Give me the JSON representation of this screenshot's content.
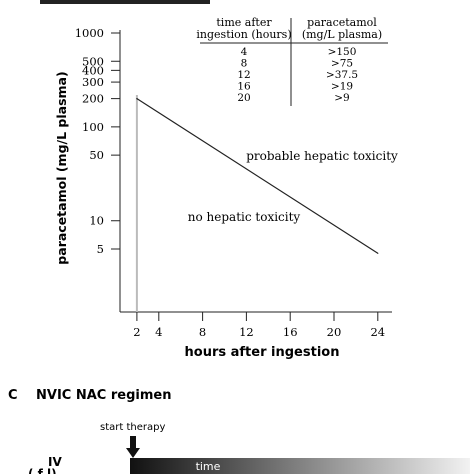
{
  "chart_data": {
    "type": "line",
    "title": "",
    "xlabel": "hours after ingestion",
    "ylabel": "paracetamol (mg/L plasma)",
    "x_ticks": [
      2,
      4,
      8,
      12,
      16,
      20,
      24
    ],
    "y_ticks": [
      1000,
      500,
      400,
      300,
      200,
      100,
      50,
      10,
      5
    ],
    "y_scale": "log",
    "xlim": [
      0,
      25
    ],
    "ylim": [
      2,
      1100
    ],
    "series": [
      {
        "x": [
          2,
          24
        ],
        "values": [
          200,
          4.5
        ]
      }
    ],
    "annotations": {
      "above_line": "probable hepatic toxicity",
      "below_line": "no hepatic toxicity"
    },
    "table": {
      "headers": [
        [
          "time after",
          "ingestion (hours)"
        ],
        [
          "paracetamol",
          "(mg/L plasma)"
        ]
      ],
      "rows": [
        [
          "4",
          ">150"
        ],
        [
          "8",
          ">75"
        ],
        [
          "12",
          ">37.5"
        ],
        [
          "16",
          ">19"
        ],
        [
          "20",
          ">9"
        ]
      ]
    }
  },
  "panel_c": {
    "letter": "C",
    "title": "NVIC NAC regimen",
    "start_label": "start therapy",
    "route_label": "IV",
    "bar_label": "time"
  }
}
